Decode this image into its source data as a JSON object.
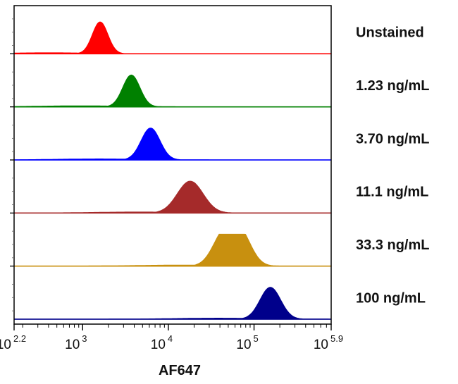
{
  "chart_data": {
    "type": "area",
    "title": "",
    "xlabel": "AF647",
    "ylabel": "",
    "x_scale": "log10",
    "xlim": [
      158.5,
      794328
    ],
    "x_ticks": [
      {
        "base": "10",
        "exp": "2.2",
        "value": 158.5
      },
      {
        "base": "10",
        "exp": "3",
        "value": 1000
      },
      {
        "base": "10",
        "exp": "4",
        "value": 10000
      },
      {
        "base": "10",
        "exp": "5",
        "value": 100000
      },
      {
        "base": "10",
        "exp": "5.9",
        "value": 794328
      }
    ],
    "grid": false,
    "legend": "lane labels at right",
    "series": [
      {
        "name": "Unstained",
        "color": "#ff0000",
        "peak": 1600,
        "width_log": 0.09,
        "shoulder": 0
      },
      {
        "name": "1.23 ng/mL",
        "color": "#008000",
        "peak": 3700,
        "width_log": 0.1,
        "shoulder": 0
      },
      {
        "name": "3.70 ng/mL",
        "color": "#0000ff",
        "peak": 6200,
        "width_log": 0.11,
        "shoulder": 0
      },
      {
        "name": "11.1 ng/mL",
        "color": "#a52a2a",
        "peak": 18000,
        "width_log": 0.15,
        "shoulder": 0
      },
      {
        "name": "33.3 ng/mL",
        "color": "#c8900f",
        "peak": 60000,
        "width_log": 0.16,
        "shoulder": 1
      },
      {
        "name": "100 ng/mL",
        "color": "#00008b",
        "peak": 155000,
        "width_log": 0.12,
        "shoulder": 0
      }
    ]
  }
}
